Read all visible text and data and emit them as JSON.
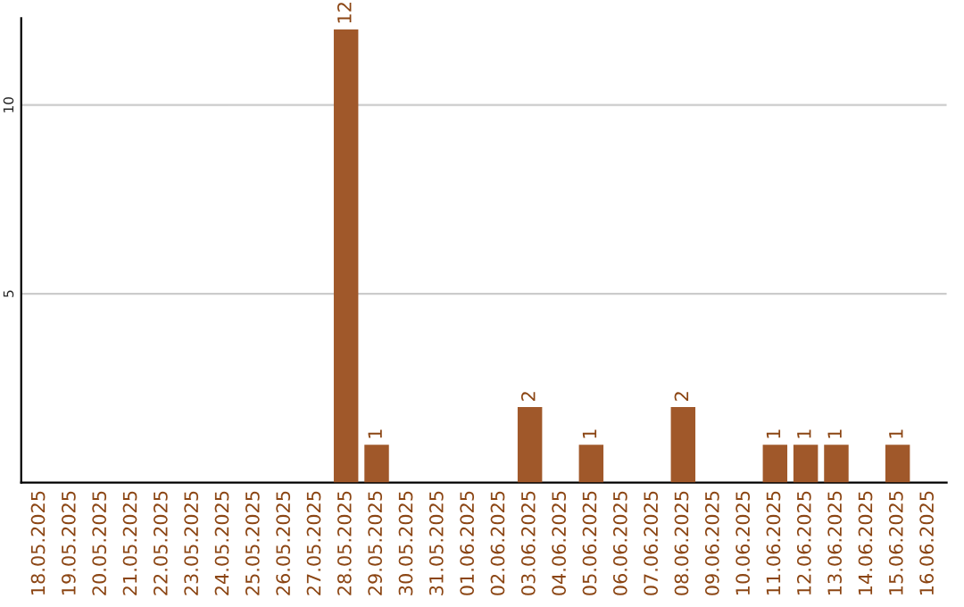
{
  "chart_data": {
    "type": "bar",
    "categories": [
      "18.05.2025",
      "19.05.2025",
      "20.05.2025",
      "21.05.2025",
      "22.05.2025",
      "23.05.2025",
      "24.05.2025",
      "25.05.2025",
      "26.05.2025",
      "27.05.2025",
      "28.05.2025",
      "29.05.2025",
      "30.05.2025",
      "31.05.2025",
      "01.06.2025",
      "02.06.2025",
      "03.06.2025",
      "04.06.2025",
      "05.06.2025",
      "06.06.2025",
      "07.06.2025",
      "08.06.2025",
      "09.06.2025",
      "10.06.2025",
      "11.06.2025",
      "12.06.2025",
      "13.06.2025",
      "14.06.2025",
      "15.06.2025",
      "16.06.2025"
    ],
    "values": [
      0,
      0,
      0,
      0,
      0,
      0,
      0,
      0,
      0,
      0,
      12,
      1,
      0,
      0,
      0,
      0,
      2,
      0,
      1,
      0,
      0,
      2,
      0,
      0,
      1,
      1,
      1,
      0,
      1,
      0
    ],
    "value_labels": [
      null,
      null,
      null,
      null,
      null,
      null,
      null,
      null,
      null,
      null,
      "12",
      "1",
      null,
      null,
      null,
      null,
      "2",
      null,
      "1",
      null,
      null,
      "2",
      null,
      null,
      "1",
      "1",
      "1",
      null,
      "1",
      null
    ],
    "color": "#a0582a",
    "ylim": [
      0,
      12.3
    ],
    "yticks": [
      5,
      10
    ],
    "grid": "y"
  }
}
